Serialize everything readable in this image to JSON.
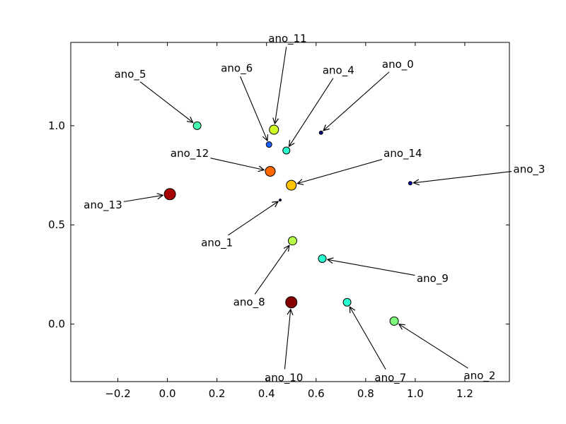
{
  "chart_data": {
    "type": "scatter",
    "title": "",
    "xlabel": "",
    "ylabel": "",
    "xlim": [
      -0.39,
      1.38
    ],
    "ylim": [
      -0.29,
      1.42
    ],
    "xticks": [
      -0.2,
      0.0,
      0.2,
      0.4,
      0.6,
      0.8,
      1.0,
      1.2
    ],
    "xtick_labels": [
      "−0.2",
      "0.0",
      "0.2",
      "0.4",
      "0.6",
      "0.8",
      "1.0",
      "1.2"
    ],
    "yticks": [
      0.0,
      0.5,
      1.0
    ],
    "ytick_labels": [
      "0.0",
      "0.5",
      "1.0"
    ],
    "grid": false,
    "colormap": "jet",
    "points": [
      {
        "label": "ano_0",
        "x": 0.62,
        "y": 0.965,
        "size": 5,
        "color": "#00007f",
        "text_at": [
          0.93,
          1.31
        ]
      },
      {
        "label": "ano_1",
        "x": 0.455,
        "y": 0.625,
        "size": 3,
        "color": "#000080",
        "text_at": [
          0.2,
          0.41
        ]
      },
      {
        "label": "ano_2",
        "x": 0.915,
        "y": 0.015,
        "size": 12,
        "color": "#7dff7a",
        "text_at": [
          1.26,
          -0.26
        ]
      },
      {
        "label": "ano_3",
        "x": 0.98,
        "y": 0.71,
        "size": 5,
        "color": "#0000a8",
        "text_at": [
          1.46,
          0.78
        ]
      },
      {
        "label": "ano_4",
        "x": 0.48,
        "y": 0.875,
        "size": 10,
        "color": "#29ffce",
        "text_at": [
          0.69,
          1.28
        ]
      },
      {
        "label": "ano_5",
        "x": 0.12,
        "y": 1.0,
        "size": 11,
        "color": "#49ffad",
        "text_at": [
          -0.15,
          1.26
        ]
      },
      {
        "label": "ano_6",
        "x": 0.41,
        "y": 0.905,
        "size": 8,
        "color": "#1c5fff",
        "text_at": [
          0.28,
          1.29
        ]
      },
      {
        "label": "ano_7",
        "x": 0.725,
        "y": 0.11,
        "size": 11,
        "color": "#26ffd0",
        "text_at": [
          0.9,
          -0.27
        ]
      },
      {
        "label": "ano_8",
        "x": 0.505,
        "y": 0.42,
        "size": 12,
        "color": "#b7ff47",
        "text_at": [
          0.33,
          0.11
        ]
      },
      {
        "label": "ano_9",
        "x": 0.625,
        "y": 0.33,
        "size": 11,
        "color": "#29ffce",
        "text_at": [
          1.07,
          0.23
        ]
      },
      {
        "label": "ano_10",
        "x": 0.5,
        "y": 0.11,
        "size": 16,
        "color": "#870000",
        "text_at": [
          0.47,
          -0.27
        ]
      },
      {
        "label": "ano_11",
        "x": 0.43,
        "y": 0.98,
        "size": 13,
        "color": "#d0ff27",
        "text_at": [
          0.485,
          1.44
        ]
      },
      {
        "label": "ano_12",
        "x": 0.415,
        "y": 0.77,
        "size": 14,
        "color": "#ff6800",
        "text_at": [
          0.09,
          0.86
        ]
      },
      {
        "label": "ano_13",
        "x": 0.01,
        "y": 0.655,
        "size": 16,
        "color": "#a70000",
        "text_at": [
          -0.26,
          0.6
        ]
      },
      {
        "label": "ano_14",
        "x": 0.5,
        "y": 0.7,
        "size": 14,
        "color": "#ffc300",
        "text_at": [
          0.95,
          0.86
        ]
      }
    ]
  }
}
